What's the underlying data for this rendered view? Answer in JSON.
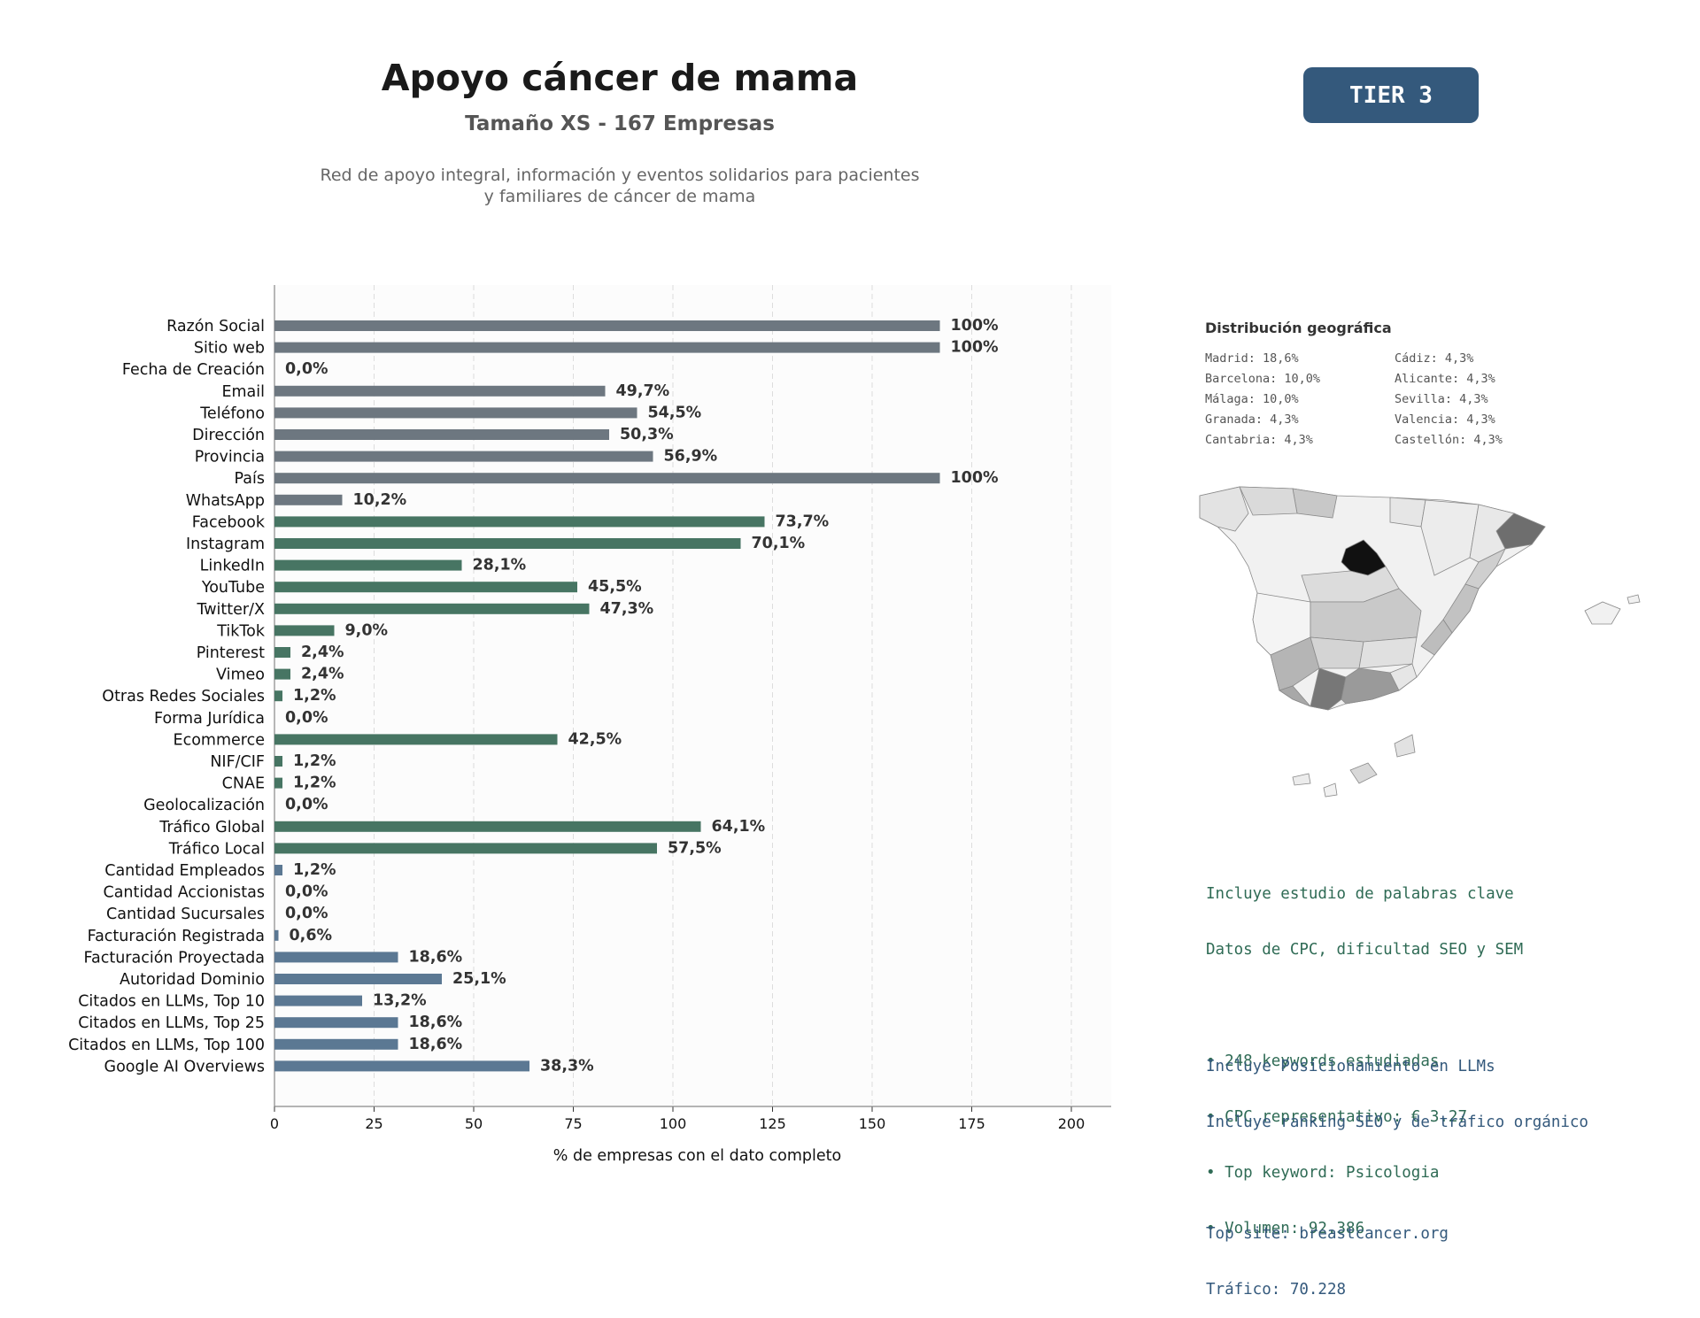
{
  "header": {
    "title": "Apoyo cáncer de mama",
    "subtitle": "Tamaño XS - 167 Empresas",
    "description_line1": "Red de apoyo integral, información y eventos solidarios para pacientes",
    "description_line2": "y familiares de cáncer de mama",
    "tier_label": "TIER 3"
  },
  "chart_data": {
    "type": "bar",
    "orientation": "horizontal",
    "xlabel": "% de empresas con el dato completo",
    "xlim": [
      0,
      210
    ],
    "xticks": [
      0,
      25,
      50,
      75,
      100,
      125,
      150,
      175,
      200
    ],
    "grid": "vertical dashed",
    "groups": {
      "basic": "#6d7780",
      "social": "#477563",
      "business": "#5b7893"
    },
    "categories": [
      "Razón Social",
      "Sitio web",
      "Fecha de Creación",
      "Email",
      "Teléfono",
      "Dirección",
      "Provincia",
      "País",
      "WhatsApp",
      "Facebook",
      "Instagram",
      "LinkedIn",
      "YouTube",
      "Twitter/X",
      "TikTok",
      "Pinterest",
      "Vimeo",
      "Otras Redes Sociales",
      "Forma Jurídica",
      "Ecommerce",
      "NIF/CIF",
      "CNAE",
      "Geolocalización",
      "Tráfico Global",
      "Tráfico Local",
      "Cantidad Empleados",
      "Cantidad Accionistas",
      "Cantidad Sucursales",
      "Facturación Registrada",
      "Facturación Proyectada",
      "Autoridad Dominio",
      "Citados en LLMs, Top 10",
      "Citados en LLMs, Top 25",
      "Citados en LLMs, Top 100",
      "Google AI Overviews"
    ],
    "values": [
      167,
      167,
      0,
      83,
      91,
      84,
      95,
      167,
      17,
      123,
      117,
      47,
      76,
      79,
      15,
      4,
      4,
      2,
      0,
      71,
      2,
      2,
      0,
      107,
      96,
      2,
      0,
      0,
      1,
      31,
      42,
      22,
      31,
      31,
      64
    ],
    "labels": [
      "100%",
      "100%",
      "0,0%",
      "49,7%",
      "54,5%",
      "50,3%",
      "56,9%",
      "100%",
      "10,2%",
      "73,7%",
      "70,1%",
      "28,1%",
      "45,5%",
      "47,3%",
      "9,0%",
      "2,4%",
      "2,4%",
      "1,2%",
      "0,0%",
      "42,5%",
      "1,2%",
      "1,2%",
      "0,0%",
      "64,1%",
      "57,5%",
      "1,2%",
      "0,0%",
      "0,0%",
      "0,6%",
      "18,6%",
      "25,1%",
      "13,2%",
      "18,6%",
      "18,6%",
      "38,3%"
    ],
    "bar_groups": [
      "basic",
      "basic",
      "basic",
      "basic",
      "basic",
      "basic",
      "basic",
      "basic",
      "basic",
      "social",
      "social",
      "social",
      "social",
      "social",
      "social",
      "social",
      "social",
      "social",
      "social",
      "social",
      "social",
      "social",
      "social",
      "social",
      "social",
      "business",
      "business",
      "business",
      "business",
      "business",
      "business",
      "business",
      "business",
      "business",
      "business"
    ]
  },
  "geo": {
    "title": "Distribución geográfica",
    "items": [
      "Madrid: 18,6%",
      "Cádiz: 4,3%",
      "Barcelona: 10,0%",
      "Alicante: 4,3%",
      "Málaga: 10,0%",
      "Sevilla: 4,3%",
      "Granada: 4,3%",
      "Valencia: 4,3%",
      "Cantabria: 4,3%",
      "Castellón: 4,3%"
    ]
  },
  "keywords": {
    "lines": [
      "Incluye estudio de palabras clave",
      "Datos de CPC, dificultad SEO y SEM",
      "",
      "• 248 keywords estudiadas",
      "• CPC representativo: € 3.27",
      "• Top keyword: Psicologia",
      "• Volumen: 92.386"
    ]
  },
  "llm": {
    "lines": [
      "Incluye Posicionamiento en LLMs",
      "Incluye ranking SEO y de tráfico orgánico",
      "",
      "Top site: breastcancer.org",
      "Tráfico: 70.228"
    ]
  }
}
